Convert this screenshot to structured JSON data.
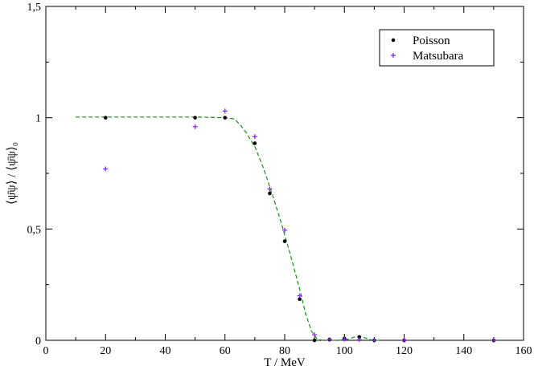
{
  "chart_data": {
    "type": "scatter",
    "xlabel": "T / MeV",
    "ylabel": "⟨ψ̄ψ⟩  /  ⟨ψ̄ψ⟩₀",
    "xlim": [
      0,
      160
    ],
    "ylim": [
      0,
      1.5
    ],
    "x_ticks": [
      0,
      20,
      40,
      60,
      80,
      100,
      120,
      140,
      160
    ],
    "x_tick_labels": [
      "0",
      "20",
      "40",
      "60",
      "80",
      "100",
      "120",
      "140",
      "160"
    ],
    "y_ticks": [
      0,
      0.5,
      1,
      1.5
    ],
    "y_tick_labels": [
      "0",
      "0,5",
      "1",
      "1,5"
    ],
    "grid": false,
    "legend_position": "top-right",
    "series": [
      {
        "name": "Poisson",
        "marker": "dot",
        "color": "#000000",
        "points": [
          [
            20,
            1.0
          ],
          [
            50,
            1.0
          ],
          [
            60,
            1.0
          ],
          [
            70,
            0.885
          ],
          [
            75,
            0.66
          ],
          [
            80,
            0.445
          ],
          [
            85,
            0.185
          ],
          [
            90,
            0.0
          ],
          [
            95,
            0.003
          ],
          [
            100,
            0.008
          ],
          [
            105,
            0.015
          ],
          [
            110,
            0.0
          ],
          [
            120,
            0.0
          ],
          [
            150,
            0.0
          ]
        ]
      },
      {
        "name": "Matsubara",
        "marker": "plus",
        "color": "#8a2be2",
        "points": [
          [
            20,
            0.77
          ],
          [
            50,
            0.96
          ],
          [
            60,
            1.03
          ],
          [
            70,
            0.915
          ],
          [
            75,
            0.68
          ],
          [
            80,
            0.495
          ],
          [
            85,
            0.2
          ],
          [
            90,
            0.025
          ],
          [
            95,
            0.003
          ],
          [
            100,
            0.005
          ],
          [
            105,
            0.003
          ],
          [
            110,
            0.0
          ],
          [
            120,
            0.0
          ],
          [
            150,
            0.0
          ]
        ]
      },
      {
        "name": "",
        "line_style": "dashed",
        "color": "#1a8f1a",
        "points": [
          [
            10,
            1.003
          ],
          [
            30,
            1.003
          ],
          [
            50,
            1.003
          ],
          [
            60,
            1.0
          ],
          [
            63,
            0.995
          ],
          [
            65,
            0.97
          ],
          [
            67,
            0.935
          ],
          [
            70,
            0.87
          ],
          [
            73,
            0.77
          ],
          [
            76,
            0.65
          ],
          [
            79,
            0.52
          ],
          [
            82,
            0.38
          ],
          [
            85,
            0.23
          ],
          [
            87,
            0.12
          ],
          [
            89,
            0.04
          ],
          [
            91,
            0.004
          ],
          [
            93,
            0.0
          ],
          [
            98,
            0.0
          ],
          [
            101,
            0.004
          ],
          [
            104,
            0.018
          ],
          [
            106,
            0.015
          ],
          [
            108,
            0.005
          ],
          [
            110,
            0.0
          ],
          [
            112,
            0.0
          ]
        ]
      }
    ]
  }
}
